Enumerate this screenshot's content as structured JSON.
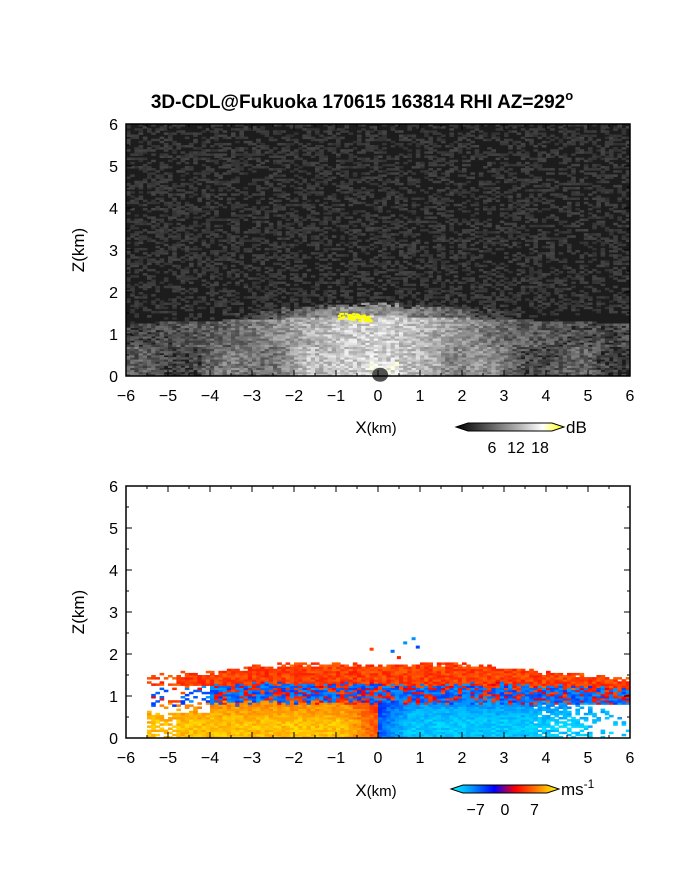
{
  "chart_data": [
    {
      "type": "heatmap",
      "title": "3D-CDL@Fukuoka 170615 163814 RHI AZ=292",
      "title_superscript": "o",
      "xlabel": "X",
      "xlabel_unit": "(km)",
      "ylabel": "Z(km)",
      "xlim": [
        -6,
        6
      ],
      "ylim": [
        0,
        6
      ],
      "x_ticks": [
        -6,
        -5,
        -4,
        -3,
        -2,
        -1,
        0,
        1,
        2,
        3,
        4,
        5,
        6
      ],
      "y_ticks": [
        0,
        1,
        2,
        3,
        4,
        5,
        6
      ],
      "grid": false,
      "colorbar": {
        "unit": "dB",
        "ticks": [
          "6",
          "12",
          "18"
        ],
        "range": [
          0,
          21
        ],
        "colors": [
          "#000000",
          "#3a3a3a",
          "#7a7a7a",
          "#b8b8b8",
          "#ffffff",
          "#ffff00"
        ]
      },
      "features": {
        "boundary_layer_top_km": 1.7,
        "bright_layer_top_km": 1.45,
        "yellow_patch": {
          "x": [
            -1.0,
            -0.2
          ],
          "z": [
            1.35,
            1.5
          ],
          "value_db": 19
        }
      }
    },
    {
      "type": "heatmap",
      "title": "",
      "xlabel": "X",
      "xlabel_unit": "(km)",
      "ylabel": "Z(km)",
      "xlim": [
        -6,
        6
      ],
      "ylim": [
        0,
        6
      ],
      "x_ticks": [
        -6,
        -5,
        -4,
        -3,
        -2,
        -1,
        0,
        1,
        2,
        3,
        4,
        5,
        6
      ],
      "y_ticks": [
        0,
        1,
        2,
        3,
        4,
        5,
        6
      ],
      "grid": false,
      "colorbar": {
        "unit": "ms",
        "unit_superscript": "-1",
        "ticks": [
          "−7",
          "0",
          "7"
        ],
        "range": [
          -10,
          10
        ],
        "colors": [
          "#00ffff",
          "#0090ff",
          "#0000ff",
          "#ff0000",
          "#ff8000",
          "#ffff00"
        ]
      },
      "features": {
        "upper_layer_km": [
          1.3,
          1.75
        ],
        "upper_layer_velocity_ms": 4,
        "middle_layer_km": [
          0.85,
          1.3
        ],
        "middle_layer_velocity_ms": -5,
        "lower_layer_km": [
          0,
          0.85
        ],
        "lower_left_velocity_ms": 8,
        "lower_right_velocity_ms": -8
      }
    }
  ],
  "colors": {
    "axis": "#000000",
    "background": "#ffffff"
  }
}
